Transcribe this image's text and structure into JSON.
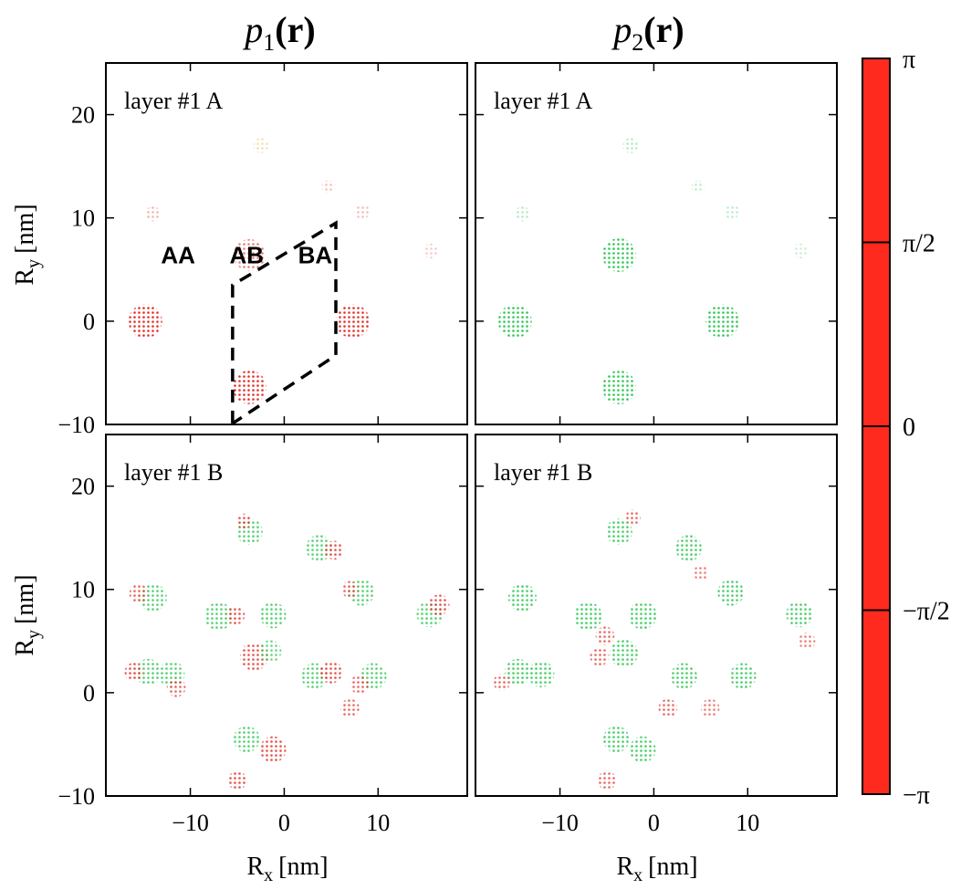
{
  "chart_data": {
    "type": "heatmap",
    "description_units": "nm",
    "col_titles": [
      {
        "base": "p",
        "sub": "1",
        "arg": "(r)"
      },
      {
        "base": "p",
        "sub": "2",
        "arg": "(r)"
      }
    ],
    "panels": [
      {
        "label": "layer #1 A",
        "col": 0,
        "row": 0,
        "blobs": [
          {
            "x": -14.8,
            "y": 0.0,
            "r": 1.8,
            "color": "#e0241c",
            "opacity": 0.95
          },
          {
            "x": 7.3,
            "y": 0.0,
            "r": 1.8,
            "color": "#e0241c",
            "opacity": 0.95
          },
          {
            "x": -3.7,
            "y": -6.4,
            "r": 1.8,
            "color": "#e0241c",
            "opacity": 0.95
          },
          {
            "x": -3.7,
            "y": 6.4,
            "r": 1.7,
            "color": "#e0241c",
            "opacity": 0.6
          },
          {
            "x": -14.0,
            "y": 10.4,
            "r": 0.8,
            "color": "#e0241c",
            "opacity": 0.35
          },
          {
            "x": -2.5,
            "y": 17.0,
            "r": 0.8,
            "color": "#e0a020",
            "opacity": 0.35
          },
          {
            "x": 4.7,
            "y": 13.0,
            "r": 0.7,
            "color": "#e0241c",
            "opacity": 0.3
          },
          {
            "x": 8.3,
            "y": 10.6,
            "r": 0.8,
            "color": "#e0241c",
            "opacity": 0.3
          },
          {
            "x": 15.6,
            "y": 6.8,
            "r": 0.8,
            "color": "#e0241c",
            "opacity": 0.25
          }
        ]
      },
      {
        "label": "layer #1 A",
        "col": 1,
        "row": 0,
        "blobs": [
          {
            "x": -14.8,
            "y": 0.0,
            "r": 1.8,
            "color": "#22c44a",
            "opacity": 0.95
          },
          {
            "x": 7.3,
            "y": 0.0,
            "r": 1.8,
            "color": "#22c44a",
            "opacity": 0.95
          },
          {
            "x": -3.7,
            "y": -6.4,
            "r": 1.8,
            "color": "#22c44a",
            "opacity": 0.95
          },
          {
            "x": -3.7,
            "y": 6.4,
            "r": 1.8,
            "color": "#22c44a",
            "opacity": 0.95
          },
          {
            "x": -14.0,
            "y": 10.4,
            "r": 0.8,
            "color": "#22c44a",
            "opacity": 0.35
          },
          {
            "x": -2.5,
            "y": 17.0,
            "r": 0.8,
            "color": "#22c44a",
            "opacity": 0.35
          },
          {
            "x": 4.7,
            "y": 13.0,
            "r": 0.7,
            "color": "#22c44a",
            "opacity": 0.3
          },
          {
            "x": 8.3,
            "y": 10.6,
            "r": 0.8,
            "color": "#22c44a",
            "opacity": 0.3
          },
          {
            "x": 15.6,
            "y": 6.8,
            "r": 0.8,
            "color": "#22c44a",
            "opacity": 0.25
          }
        ]
      },
      {
        "label": "layer #1 B",
        "col": 0,
        "row": 1,
        "blobs": [
          {
            "x": -14.0,
            "y": 9.2,
            "r": 1.5,
            "color": "#22c44a",
            "opacity": 0.8
          },
          {
            "x": -15.5,
            "y": 9.6,
            "r": 1.0,
            "color": "#e0241c",
            "opacity": 0.7
          },
          {
            "x": -7.0,
            "y": 7.4,
            "r": 1.5,
            "color": "#22c44a",
            "opacity": 0.8
          },
          {
            "x": -5.2,
            "y": 7.5,
            "r": 1.0,
            "color": "#e0241c",
            "opacity": 0.8
          },
          {
            "x": -1.2,
            "y": 7.5,
            "r": 1.4,
            "color": "#22c44a",
            "opacity": 0.8
          },
          {
            "x": -3.2,
            "y": 3.5,
            "r": 1.5,
            "color": "#e0241c",
            "opacity": 0.8
          },
          {
            "x": -1.5,
            "y": 4.0,
            "r": 1.2,
            "color": "#22c44a",
            "opacity": 0.7
          },
          {
            "x": -14.5,
            "y": 2.0,
            "r": 1.4,
            "color": "#22c44a",
            "opacity": 0.8
          },
          {
            "x": -16.0,
            "y": 2.0,
            "r": 1.0,
            "color": "#e0241c",
            "opacity": 0.8
          },
          {
            "x": -12.0,
            "y": 1.8,
            "r": 1.4,
            "color": "#22c44a",
            "opacity": 0.8
          },
          {
            "x": -11.5,
            "y": 0.5,
            "r": 1.0,
            "color": "#e0241c",
            "opacity": 0.7
          },
          {
            "x": 3.2,
            "y": 1.6,
            "r": 1.4,
            "color": "#22c44a",
            "opacity": 0.8
          },
          {
            "x": 5.0,
            "y": 2.0,
            "r": 1.2,
            "color": "#e0241c",
            "opacity": 0.8
          },
          {
            "x": 9.5,
            "y": 1.6,
            "r": 1.4,
            "color": "#22c44a",
            "opacity": 0.8
          },
          {
            "x": 8.0,
            "y": 0.8,
            "r": 1.0,
            "color": "#e0241c",
            "opacity": 0.7
          },
          {
            "x": 7.0,
            "y": -1.5,
            "r": 1.0,
            "color": "#e0241c",
            "opacity": 0.7
          },
          {
            "x": -3.7,
            "y": 15.6,
            "r": 1.4,
            "color": "#22c44a",
            "opacity": 0.8
          },
          {
            "x": -4.3,
            "y": 16.6,
            "r": 0.8,
            "color": "#e0241c",
            "opacity": 0.8
          },
          {
            "x": 3.7,
            "y": 14.0,
            "r": 1.4,
            "color": "#22c44a",
            "opacity": 0.8
          },
          {
            "x": 5.3,
            "y": 13.8,
            "r": 1.0,
            "color": "#e0241c",
            "opacity": 0.8
          },
          {
            "x": 8.2,
            "y": 9.7,
            "r": 1.4,
            "color": "#22c44a",
            "opacity": 0.8
          },
          {
            "x": 7.0,
            "y": 10.0,
            "r": 0.9,
            "color": "#e0241c",
            "opacity": 0.7
          },
          {
            "x": 15.5,
            "y": 7.6,
            "r": 1.4,
            "color": "#22c44a",
            "opacity": 0.8
          },
          {
            "x": 16.5,
            "y": 8.5,
            "r": 1.1,
            "color": "#e0241c",
            "opacity": 0.8
          },
          {
            "x": -4.0,
            "y": -4.5,
            "r": 1.4,
            "color": "#22c44a",
            "opacity": 0.8
          },
          {
            "x": -1.2,
            "y": -5.5,
            "r": 1.4,
            "color": "#e0241c",
            "opacity": 0.8
          },
          {
            "x": -5.0,
            "y": -8.5,
            "r": 1.0,
            "color": "#e0241c",
            "opacity": 0.8
          }
        ]
      },
      {
        "label": "layer #1 B",
        "col": 1,
        "row": 1,
        "blobs": [
          {
            "x": -14.0,
            "y": 9.2,
            "r": 1.5,
            "color": "#22c44a",
            "opacity": 0.85
          },
          {
            "x": -7.0,
            "y": 7.4,
            "r": 1.5,
            "color": "#22c44a",
            "opacity": 0.85
          },
          {
            "x": -5.2,
            "y": 5.5,
            "r": 1.0,
            "color": "#e0241c",
            "opacity": 0.7
          },
          {
            "x": -1.2,
            "y": 7.5,
            "r": 1.5,
            "color": "#22c44a",
            "opacity": 0.85
          },
          {
            "x": -3.2,
            "y": 3.8,
            "r": 1.5,
            "color": "#22c44a",
            "opacity": 0.85
          },
          {
            "x": -5.8,
            "y": 3.5,
            "r": 1.0,
            "color": "#e0241c",
            "opacity": 0.7
          },
          {
            "x": -14.5,
            "y": 2.0,
            "r": 1.4,
            "color": "#22c44a",
            "opacity": 0.85
          },
          {
            "x": -16.2,
            "y": 1.0,
            "r": 0.9,
            "color": "#e0241c",
            "opacity": 0.7
          },
          {
            "x": -12.0,
            "y": 1.8,
            "r": 1.4,
            "color": "#22c44a",
            "opacity": 0.85
          },
          {
            "x": 3.2,
            "y": 1.6,
            "r": 1.4,
            "color": "#22c44a",
            "opacity": 0.85
          },
          {
            "x": 1.5,
            "y": -1.5,
            "r": 1.0,
            "color": "#e0241c",
            "opacity": 0.7
          },
          {
            "x": 9.5,
            "y": 1.6,
            "r": 1.4,
            "color": "#22c44a",
            "opacity": 0.85
          },
          {
            "x": 6.0,
            "y": -1.5,
            "r": 1.0,
            "color": "#e0241c",
            "opacity": 0.6
          },
          {
            "x": -3.7,
            "y": 15.6,
            "r": 1.4,
            "color": "#22c44a",
            "opacity": 0.85
          },
          {
            "x": -2.2,
            "y": 17.0,
            "r": 0.8,
            "color": "#e0241c",
            "opacity": 0.7
          },
          {
            "x": 3.7,
            "y": 14.0,
            "r": 1.4,
            "color": "#22c44a",
            "opacity": 0.85
          },
          {
            "x": 5.0,
            "y": 11.6,
            "r": 0.8,
            "color": "#e0241c",
            "opacity": 0.6
          },
          {
            "x": 8.2,
            "y": 9.7,
            "r": 1.4,
            "color": "#22c44a",
            "opacity": 0.85
          },
          {
            "x": 15.5,
            "y": 7.6,
            "r": 1.4,
            "color": "#22c44a",
            "opacity": 0.85
          },
          {
            "x": 16.3,
            "y": 5.0,
            "r": 0.9,
            "color": "#e0241c",
            "opacity": 0.6
          },
          {
            "x": -4.0,
            "y": -4.5,
            "r": 1.4,
            "color": "#22c44a",
            "opacity": 0.85
          },
          {
            "x": -1.2,
            "y": -5.5,
            "r": 1.4,
            "color": "#22c44a",
            "opacity": 0.85
          },
          {
            "x": -5.0,
            "y": -8.5,
            "r": 1.0,
            "color": "#e0241c",
            "opacity": 0.7
          }
        ]
      }
    ],
    "annotations": {
      "panel": 0,
      "labels": [
        {
          "text": "AA",
          "x": -11.3,
          "y": 6.4
        },
        {
          "text": "AB",
          "x": -4.0,
          "y": 6.4
        },
        {
          "text": "BA",
          "x": 3.3,
          "y": 6.4
        }
      ],
      "unit_cell": [
        [
          -5.5,
          -9.9
        ],
        [
          -5.5,
          3.5
        ],
        [
          5.5,
          9.5
        ],
        [
          5.5,
          -3.3
        ],
        [
          -5.5,
          -9.9
        ]
      ]
    },
    "x_axis": {
      "label": "R",
      "sub": "x",
      "unit": "[nm]",
      "range": [
        -19,
        19.5
      ],
      "ticks": [
        -10,
        0,
        10
      ],
      "tick_labels": [
        "−10",
        "0",
        "10"
      ]
    },
    "y_axis": {
      "label": "R",
      "sub": "y",
      "unit": "[nm]",
      "range": [
        -10,
        25
      ],
      "ticks": [
        -10,
        0,
        10,
        20
      ],
      "tick_labels": [
        "−10",
        "0",
        "10",
        "20"
      ]
    },
    "colorbar": {
      "label_ticks": [
        "π",
        "π/2",
        "0",
        "−π/2",
        "−π"
      ],
      "stops": [
        {
          "v": 1.0,
          "color": "#ff2a1e"
        },
        {
          "v": 0.86,
          "color": "#ff8a2a"
        },
        {
          "v": 0.75,
          "color": "#f7f72a"
        },
        {
          "v": 0.62,
          "color": "#52e82e"
        },
        {
          "v": 0.5,
          "color": "#18d83c"
        },
        {
          "v": 0.38,
          "color": "#1fa872"
        },
        {
          "v": 0.25,
          "color": "#2a3aff"
        },
        {
          "v": 0.12,
          "color": "#9a3aa6"
        },
        {
          "v": 0.0,
          "color": "#ff2a1e"
        }
      ]
    }
  }
}
